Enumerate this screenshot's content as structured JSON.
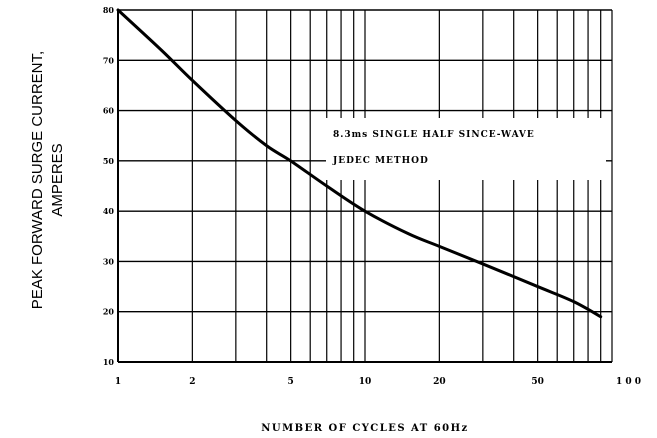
{
  "chart_data": {
    "type": "line",
    "xscale": "log",
    "xlim": [
      1,
      100
    ],
    "ylim": [
      10,
      80
    ],
    "grid": true,
    "ylabel": "PEAK FORWARD SURGE CURRENT,",
    "ylabel2": "AMPERES",
    "xlabel": "NUMBER OF CYCLES AT 60Hz",
    "x_ticks": [
      1,
      2,
      5,
      10,
      20,
      50,
      100
    ],
    "x_tick_labels": [
      "1",
      "2",
      "5",
      "10",
      "20",
      "50",
      "1 0 0"
    ],
    "y_ticks": [
      10,
      20,
      30,
      40,
      50,
      60,
      70,
      80
    ],
    "y_tick_labels": [
      "10",
      "20",
      "30",
      "40",
      "50",
      "60",
      "70",
      "80"
    ],
    "annotations": [
      "8.3ms SINGLE HALF SINCE-WAVE",
      "JEDEC METHOD"
    ],
    "series": [
      {
        "x": [
          1,
          1.5,
          2,
          3,
          4,
          5,
          7,
          10,
          15,
          20,
          30,
          50,
          70,
          90
        ],
        "y": [
          80,
          72,
          66,
          58,
          53,
          50,
          45,
          40,
          35.5,
          33,
          29.5,
          25,
          22,
          19
        ]
      }
    ]
  }
}
